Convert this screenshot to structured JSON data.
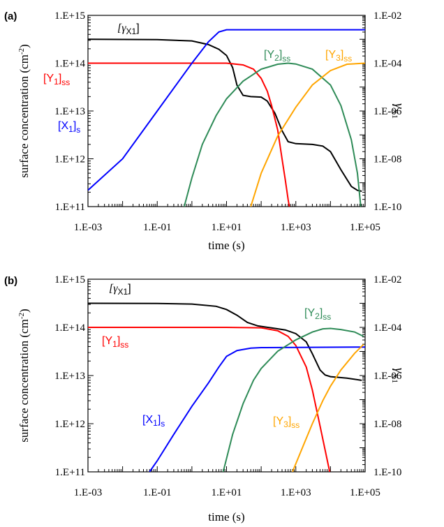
{
  "chart_data": [
    {
      "type": "line",
      "panel_label": "(a)",
      "xlabel": "time (s)",
      "ylabel": "surface concentration (cm",
      "ylabel_sup": "-2",
      "ylabel_tail": ")",
      "y2label_main": "γ",
      "y2label_sub": "X1",
      "x_scale": "log",
      "y_scale": "log",
      "y2_scale": "log",
      "xlim": [
        0.001,
        100000
      ],
      "ylim": [
        100000000000.0,
        1000000000000000.0
      ],
      "y2lim": [
        1e-10,
        0.01
      ],
      "x_ticks": [
        0.001,
        0.1,
        10,
        1000,
        100000
      ],
      "x_tick_labels": [
        "1.E-03",
        "1.E-01",
        "1.E+01",
        "1.E+03",
        "1.E+05"
      ],
      "y_ticks": [
        100000000000.0,
        1000000000000.0,
        10000000000000.0,
        100000000000000.0,
        1000000000000000.0
      ],
      "y_tick_labels": [
        "1.E+11",
        "1.E+12",
        "1.E+13",
        "1.E+14",
        "1.E+15"
      ],
      "y2_ticks": [
        1e-10,
        1e-08,
        1e-06,
        0.0001,
        0.01
      ],
      "y2_tick_labels": [
        "1.E-10",
        "1.E-08",
        "1.E-06",
        "1.E-04",
        "1.E-02"
      ],
      "grid": false,
      "series": [
        {
          "name": "[γX1]",
          "label_main": "[γ",
          "label_sub": "X1",
          "label_tail": "]",
          "color": "#000000",
          "axis": "right",
          "points": [
            [
              0.001,
              0.001
            ],
            [
              0.1,
              0.00097
            ],
            [
              1,
              0.00085
            ],
            [
              3,
              0.0006
            ],
            [
              6,
              0.00038
            ],
            [
              10,
              0.00021
            ],
            [
              15,
              6.5e-05
            ],
            [
              20,
              1.2e-05
            ],
            [
              30,
              4.5e-06
            ],
            [
              50,
              4e-06
            ],
            [
              100,
              3.8e-06
            ],
            [
              150,
              2.6e-06
            ],
            [
              250,
              8e-07
            ],
            [
              400,
              1.5e-07
            ],
            [
              600,
              5.2e-08
            ],
            [
              1000,
              4.3e-08
            ],
            [
              3000,
              4e-08
            ],
            [
              6000,
              3.4e-08
            ],
            [
              10000,
              2e-08
            ],
            [
              20000,
              3.5e-09
            ],
            [
              40000,
              7e-10
            ],
            [
              60000,
              4.8e-10
            ],
            [
              80000,
              4.4e-10
            ]
          ]
        },
        {
          "name": "[Y1]ss",
          "label_main": "[Y",
          "label_sub1": "1",
          "label_mid": "]",
          "label_sub2": "ss",
          "color": "#ff0000",
          "axis": "left",
          "points": [
            [
              0.001,
              100000000000000.0
            ],
            [
              1,
              100000000000000.0
            ],
            [
              10,
              100000000000000.0
            ],
            [
              30,
              92000000000000.0
            ],
            [
              60,
              75000000000000.0
            ],
            [
              100,
              48000000000000.0
            ],
            [
              150,
              26000000000000.0
            ],
            [
              200,
              13000000000000.0
            ],
            [
              300,
              4000000000000.0
            ],
            [
              400,
              1000000000000.0
            ],
            [
              500,
              350000000000.0
            ],
            [
              600,
              140000000000.0
            ],
            [
              650,
              100000000000.0
            ]
          ]
        },
        {
          "name": "[X1]s",
          "label_main": "[X",
          "label_sub1": "1",
          "label_mid": "]",
          "label_sub2": "s",
          "color": "#0000ff",
          "axis": "left",
          "points": [
            [
              0.001,
              220000000000.0
            ],
            [
              0.01,
              1000000000000.0
            ],
            [
              0.1,
              10000000000000.0
            ],
            [
              1,
              100000000000000.0
            ],
            [
              3,
              280000000000000.0
            ],
            [
              6,
              450000000000000.0
            ],
            [
              10,
              500000000000000.0
            ],
            [
              20,
              500000000000000.0
            ],
            [
              100000,
              500000000000000.0
            ]
          ]
        },
        {
          "name": "[Y2]ss",
          "label_main": "[Y",
          "label_sub1": "2",
          "label_mid": "]",
          "label_sub2": "ss",
          "color": "#2e8b57",
          "axis": "left",
          "points": [
            [
              0.6,
              100000000000.0
            ],
            [
              1,
              400000000000.0
            ],
            [
              2,
              2000000000000.0
            ],
            [
              5,
              8000000000000.0
            ],
            [
              10,
              18000000000000.0
            ],
            [
              30,
              42000000000000.0
            ],
            [
              100,
              75000000000000.0
            ],
            [
              300,
              95000000000000.0
            ],
            [
              600,
              100000000000000.0
            ],
            [
              1000,
              96000000000000.0
            ],
            [
              3000,
              75000000000000.0
            ],
            [
              10000,
              35000000000000.0
            ],
            [
              20000,
              13000000000000.0
            ],
            [
              40000,
              2500000000000.0
            ],
            [
              60000,
              500000000000.0
            ],
            [
              75000,
              100000000000.0
            ]
          ]
        },
        {
          "name": "[Y3]ss",
          "label_main": "[Y",
          "label_sub1": "3",
          "label_mid": "]",
          "label_sub2": "ss",
          "color": "#ffa500",
          "axis": "left",
          "points": [
            [
              50,
              100000000000.0
            ],
            [
              100,
              500000000000.0
            ],
            [
              300,
              3000000000000.0
            ],
            [
              1000,
              12000000000000.0
            ],
            [
              3000,
              35000000000000.0
            ],
            [
              10000,
              70000000000000.0
            ],
            [
              30000,
              95000000000000.0
            ],
            [
              100000,
              100000000000000.0
            ]
          ]
        }
      ]
    },
    {
      "type": "line",
      "panel_label": "(b)",
      "xlabel": "time (s)",
      "ylabel": "surface concentration (cm",
      "ylabel_sup": "-2",
      "ylabel_tail": ")",
      "y2label_main": "γ",
      "y2label_sub": "X1",
      "x_scale": "log",
      "y_scale": "log",
      "y2_scale": "log",
      "xlim": [
        0.001,
        100000
      ],
      "ylim": [
        100000000000.0,
        1000000000000000.0
      ],
      "y2lim": [
        1e-10,
        0.01
      ],
      "x_ticks": [
        0.001,
        0.1,
        10,
        1000,
        100000
      ],
      "x_tick_labels": [
        "1.E-03",
        "1.E-01",
        "1.E+01",
        "1.E+03",
        "1.E+05"
      ],
      "y_ticks": [
        100000000000.0,
        1000000000000.0,
        10000000000000.0,
        100000000000000.0,
        1000000000000000.0
      ],
      "y_tick_labels": [
        "1.E+11",
        "1.E+12",
        "1.E+13",
        "1.E+14",
        "1.E+15"
      ],
      "y2_ticks": [
        1e-10,
        1e-08,
        1e-06,
        0.0001,
        0.01
      ],
      "y2_tick_labels": [
        "1.E-10",
        "1.E-08",
        "1.E-06",
        "1.E-04",
        "1.E-02"
      ],
      "grid": false,
      "series": [
        {
          "name": "[γX1]",
          "label_main": "[γ",
          "label_sub": "X1",
          "label_tail": "]",
          "color": "#000000",
          "axis": "right",
          "points": [
            [
              0.001,
              0.001
            ],
            [
              0.1,
              0.00098
            ],
            [
              1,
              0.00093
            ],
            [
              5,
              0.00075
            ],
            [
              10,
              0.00055
            ],
            [
              20,
              0.00032
            ],
            [
              40,
              0.00016
            ],
            [
              80,
              0.000115
            ],
            [
              200,
              9.5e-05
            ],
            [
              500,
              7.8e-05
            ],
            [
              1000,
              5.5e-05
            ],
            [
              2000,
              2.5e-05
            ],
            [
              3000,
              8e-06
            ],
            [
              5000,
              1.7e-06
            ],
            [
              7000,
              1.05e-06
            ],
            [
              10000,
              9e-07
            ],
            [
              30000,
              7.8e-07
            ],
            [
              80000,
              6.3e-07
            ]
          ]
        },
        {
          "name": "[Y1]ss",
          "label_main": "[Y",
          "label_sub1": "1",
          "label_mid": "]",
          "label_sub2": "ss",
          "color": "#ff0000",
          "axis": "left",
          "points": [
            [
              0.001,
              100000000000000.0
            ],
            [
              10,
              100000000000000.0
            ],
            [
              100,
              98000000000000.0
            ],
            [
              300,
              85000000000000.0
            ],
            [
              600,
              65000000000000.0
            ],
            [
              1000,
              42000000000000.0
            ],
            [
              2000,
              15000000000000.0
            ],
            [
              3000,
              5000000000000.0
            ],
            [
              5000,
              900000000000.0
            ],
            [
              8000,
              180000000000.0
            ],
            [
              9500,
              100000000000.0
            ]
          ]
        },
        {
          "name": "[X1]s",
          "label_main": "[X",
          "label_sub1": "1",
          "label_mid": "]",
          "label_sub2": "s",
          "color": "#0000ff",
          "axis": "left",
          "points": [
            [
              0.06,
              100000000000.0
            ],
            [
              0.1,
              170000000000.0
            ],
            [
              0.3,
              600000000000.0
            ],
            [
              1,
              2300000000000.0
            ],
            [
              3,
              7000000000000.0
            ],
            [
              6,
              15000000000000.0
            ],
            [
              10,
              25000000000000.0
            ],
            [
              20,
              33000000000000.0
            ],
            [
              50,
              37000000000000.0
            ],
            [
              100,
              38000000000000.0
            ],
            [
              100000,
              39000000000000.0
            ]
          ]
        },
        {
          "name": "[Y2]ss",
          "label_main": "[Y",
          "label_sub1": "2",
          "label_mid": "]",
          "label_sub2": "ss",
          "color": "#2e8b57",
          "axis": "left",
          "points": [
            [
              8,
              100000000000.0
            ],
            [
              15,
              600000000000.0
            ],
            [
              30,
              2600000000000.0
            ],
            [
              60,
              8000000000000.0
            ],
            [
              100,
              14000000000000.0
            ],
            [
              300,
              32000000000000.0
            ],
            [
              1000,
              55000000000000.0
            ],
            [
              3000,
              80000000000000.0
            ],
            [
              6000,
              93000000000000.0
            ],
            [
              10000,
              95000000000000.0
            ],
            [
              20000,
              90000000000000.0
            ],
            [
              50000,
              80000000000000.0
            ],
            [
              90000,
              65000000000000.0
            ]
          ]
        },
        {
          "name": "[Y3]ss",
          "label_main": "[Y",
          "label_sub1": "3",
          "label_mid": "]",
          "label_sub2": "ss",
          "color": "#ffa500",
          "axis": "left",
          "points": [
            [
              800,
              100000000000.0
            ],
            [
              1500,
              300000000000.0
            ],
            [
              3000,
              1000000000000.0
            ],
            [
              6000,
              3000000000000.0
            ],
            [
              10000,
              6000000000000.0
            ],
            [
              20000,
              13000000000000.0
            ],
            [
              50000,
              29000000000000.0
            ],
            [
              90000,
              44000000000000.0
            ]
          ]
        }
      ]
    }
  ]
}
